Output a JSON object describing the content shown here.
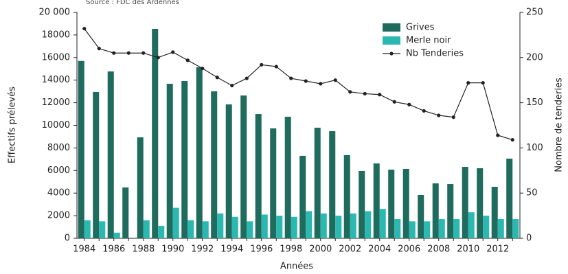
{
  "chart_data": {
    "type": "bar-line",
    "source": "Source : FDC des Ardennes",
    "x_label": "Années",
    "y_label": "Effectifs prélevés",
    "y2_label": "Nombre de tenderies",
    "categories": [
      "1984",
      null,
      "1986",
      null,
      "1988",
      null,
      "1990",
      null,
      "1992",
      null,
      "1994",
      null,
      "1996",
      null,
      "1998",
      null,
      "2000",
      null,
      "2002",
      null,
      "2004",
      null,
      "2006",
      null,
      "2008",
      null,
      "2010",
      null,
      "2012",
      null
    ],
    "series": [
      {
        "name": "Grives",
        "type": "bar",
        "color": "#1f6b5e",
        "values": [
          15700,
          12950,
          14770,
          4500,
          8940,
          18540,
          13680,
          13920,
          15140,
          13010,
          11850,
          12640,
          11000,
          9730,
          10760,
          7300,
          9790,
          9480,
          7360,
          5960,
          6630,
          6080,
          6140,
          3830,
          4860,
          4800,
          6320,
          6200,
          4560,
          7050
        ]
      },
      {
        "name": "Merle noir",
        "type": "bar",
        "color": "#2bb8b0",
        "values": [
          1600,
          1500,
          500,
          0,
          1600,
          1100,
          2700,
          1600,
          1500,
          2200,
          1900,
          1500,
          2100,
          2000,
          1900,
          2400,
          2200,
          2000,
          2200,
          2400,
          2600,
          1700,
          1500,
          1500,
          1700,
          1700,
          2300,
          2000,
          1700,
          1700
        ]
      },
      {
        "name": "Nb Tenderies",
        "type": "line",
        "axis": "y2",
        "color": "#222222",
        "values": [
          232,
          210,
          205,
          205,
          205,
          200,
          206,
          197,
          188,
          178,
          169,
          177,
          192,
          190,
          177,
          174,
          171,
          175,
          162,
          160,
          159,
          151,
          148,
          141,
          136,
          134,
          172,
          172,
          114,
          109
        ]
      }
    ],
    "ylim": [
      0,
      20000
    ],
    "yticks": [
      0,
      2000,
      4000,
      6000,
      8000,
      10000,
      12000,
      14000,
      16000,
      18000,
      {
        "value": 20000,
        "label": "20 000"
      }
    ],
    "y2lim": [
      0,
      250
    ],
    "y2ticks": [
      0,
      50,
      100,
      150,
      200,
      250
    ],
    "legend": "top-right"
  }
}
